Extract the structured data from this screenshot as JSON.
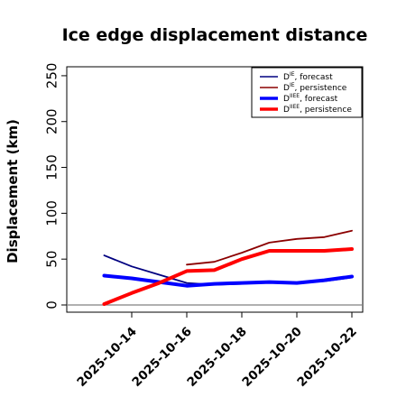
{
  "chart_data": {
    "type": "line",
    "title": "Ice edge displacement distance",
    "ylabel": "Displacement (km)",
    "xlabel": "",
    "ylim": [
      0,
      260
    ],
    "yticks": [
      0,
      50,
      100,
      150,
      200,
      250
    ],
    "xticks": [
      {
        "date": "2025-10-14",
        "label": "2025-10-14",
        "color": "#228b22"
      },
      {
        "date": "2025-10-16",
        "label": "2025-10-16",
        "color": "#000000"
      },
      {
        "date": "2025-10-18",
        "label": "2025-10-18",
        "color": "#000000"
      },
      {
        "date": "2025-10-20",
        "label": "2025-10-20",
        "color": "#000000"
      },
      {
        "date": "2025-10-22",
        "label": "2025-10-22",
        "color": "#000000"
      }
    ],
    "x": [
      "2025-10-13",
      "2025-10-14",
      "2025-10-15",
      "2025-10-16",
      "2025-10-17",
      "2025-10-18",
      "2025-10-19",
      "2025-10-20",
      "2025-10-21",
      "2025-10-22"
    ],
    "grid": false,
    "reference_line": {
      "y": 0,
      "color": "#808080"
    },
    "legend_position": "top-right",
    "series": [
      {
        "symbol": "D",
        "sup": "IE",
        "suffix": ", forecast",
        "color": "#000080",
        "width": "thin",
        "values": [
          54,
          42,
          33,
          24,
          22,
          23,
          25,
          24,
          26,
          30
        ]
      },
      {
        "symbol": "D",
        "sup": "IE",
        "suffix": ", persistence",
        "color": "#8b0000",
        "width": "thin",
        "values": [
          null,
          null,
          null,
          44,
          47,
          57,
          68,
          72,
          74,
          81
        ]
      },
      {
        "symbol": "D",
        "sup": "IIEE",
        "suffix": ", forecast",
        "color": "#0000ff",
        "width": "thick",
        "values": [
          32,
          29,
          25,
          21,
          23,
          24,
          25,
          24,
          27,
          31
        ]
      },
      {
        "symbol": "D",
        "sup": "IIEE",
        "suffix": ", persistence",
        "color": "#ff0000",
        "width": "thick",
        "values": [
          1,
          13,
          24,
          37,
          38,
          50,
          59,
          59,
          59,
          61
        ]
      }
    ]
  }
}
